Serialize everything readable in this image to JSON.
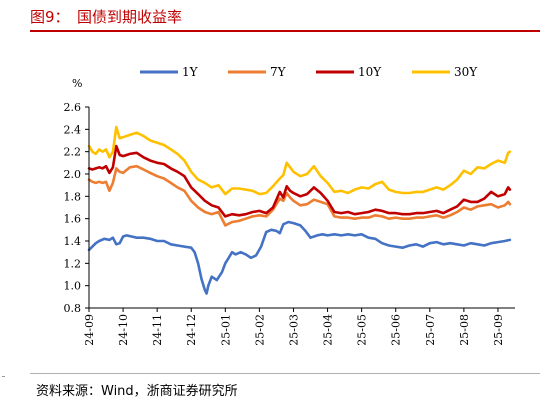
{
  "header": {
    "title": "图9：　国债到期收益率"
  },
  "footer": {
    "source": "资料来源：Wind，浙商证券研究所"
  },
  "chart_data": {
    "type": "line",
    "title": "国债到期收益率",
    "ylabel": "%",
    "ylim": [
      0.8,
      2.6
    ],
    "yticks": [
      "0.8",
      "1.0",
      "1.2",
      "1.4",
      "1.6",
      "1.8",
      "2.0",
      "2.2",
      "2.4",
      "2.6"
    ],
    "xlim": [
      0,
      12.5
    ],
    "xticks": [
      "24-09",
      "24-10",
      "24-11",
      "24-12",
      "25-01",
      "25-02",
      "25-03",
      "25-04",
      "25-05",
      "25-06",
      "25-07",
      "25-08",
      "25-09"
    ],
    "grid": false,
    "legend": "top",
    "colors": {
      "1Y": "#4472c4",
      "7Y": "#ed7d31",
      "10Y": "#c00000",
      "30Y": "#ffc000"
    },
    "series": [
      {
        "name": "1Y",
        "x": [
          0.0,
          0.1,
          0.2,
          0.3,
          0.45,
          0.6,
          0.7,
          0.8,
          0.9,
          1.0,
          1.1,
          1.25,
          1.4,
          1.6,
          1.8,
          2.0,
          2.2,
          2.4,
          2.6,
          2.8,
          3.0,
          3.1,
          3.2,
          3.3,
          3.4,
          3.45,
          3.5,
          3.6,
          3.75,
          3.9,
          4.0,
          4.1,
          4.2,
          4.3,
          4.45,
          4.6,
          4.75,
          4.9,
          5.05,
          5.2,
          5.35,
          5.5,
          5.6,
          5.7,
          5.85,
          6.0,
          6.2,
          6.35,
          6.5,
          6.7,
          6.85,
          7.0,
          7.2,
          7.4,
          7.6,
          7.8,
          8.0,
          8.2,
          8.4,
          8.6,
          8.8,
          9.0,
          9.2,
          9.4,
          9.6,
          9.8,
          10.0,
          10.2,
          10.4,
          10.6,
          10.8,
          11.0,
          11.2,
          11.4,
          11.6,
          11.8,
          12.0,
          12.2,
          12.35
        ],
        "values": [
          1.32,
          1.35,
          1.38,
          1.4,
          1.42,
          1.41,
          1.43,
          1.37,
          1.38,
          1.44,
          1.45,
          1.44,
          1.43,
          1.43,
          1.42,
          1.4,
          1.4,
          1.37,
          1.36,
          1.35,
          1.34,
          1.3,
          1.2,
          1.06,
          0.96,
          0.93,
          1.0,
          1.08,
          1.05,
          1.12,
          1.2,
          1.25,
          1.3,
          1.28,
          1.3,
          1.28,
          1.25,
          1.27,
          1.35,
          1.48,
          1.5,
          1.49,
          1.47,
          1.55,
          1.57,
          1.56,
          1.54,
          1.49,
          1.43,
          1.45,
          1.46,
          1.45,
          1.46,
          1.45,
          1.46,
          1.45,
          1.46,
          1.43,
          1.42,
          1.38,
          1.36,
          1.35,
          1.34,
          1.36,
          1.37,
          1.35,
          1.38,
          1.39,
          1.37,
          1.38,
          1.37,
          1.36,
          1.38,
          1.37,
          1.36,
          1.38,
          1.39,
          1.4,
          1.41
        ]
      },
      {
        "name": "7Y",
        "x": [
          0.0,
          0.1,
          0.2,
          0.3,
          0.4,
          0.5,
          0.6,
          0.7,
          0.8,
          0.9,
          1.0,
          1.2,
          1.4,
          1.6,
          1.8,
          2.0,
          2.2,
          2.4,
          2.6,
          2.8,
          3.0,
          3.2,
          3.4,
          3.6,
          3.8,
          4.0,
          4.2,
          4.4,
          4.6,
          4.8,
          5.0,
          5.2,
          5.4,
          5.6,
          5.7,
          5.8,
          5.9,
          6.0,
          6.2,
          6.4,
          6.6,
          6.8,
          7.0,
          7.2,
          7.4,
          7.6,
          7.8,
          8.0,
          8.2,
          8.4,
          8.6,
          8.8,
          9.0,
          9.2,
          9.4,
          9.6,
          9.8,
          10.0,
          10.2,
          10.4,
          10.6,
          10.8,
          11.0,
          11.2,
          11.4,
          11.6,
          11.8,
          12.0,
          12.2,
          12.3,
          12.35
        ],
        "values": [
          1.95,
          1.93,
          1.92,
          1.93,
          1.92,
          1.93,
          1.85,
          1.92,
          2.05,
          2.02,
          2.01,
          2.06,
          2.07,
          2.04,
          2.01,
          1.98,
          1.96,
          1.92,
          1.88,
          1.85,
          1.76,
          1.7,
          1.66,
          1.64,
          1.66,
          1.54,
          1.57,
          1.58,
          1.6,
          1.62,
          1.63,
          1.62,
          1.68,
          1.78,
          1.76,
          1.83,
          1.79,
          1.76,
          1.72,
          1.73,
          1.77,
          1.75,
          1.73,
          1.62,
          1.61,
          1.61,
          1.6,
          1.61,
          1.61,
          1.63,
          1.62,
          1.6,
          1.61,
          1.6,
          1.6,
          1.61,
          1.61,
          1.62,
          1.63,
          1.61,
          1.63,
          1.66,
          1.7,
          1.68,
          1.71,
          1.72,
          1.73,
          1.7,
          1.72,
          1.75,
          1.73
        ]
      },
      {
        "name": "10Y",
        "x": [
          0.0,
          0.1,
          0.2,
          0.3,
          0.4,
          0.5,
          0.6,
          0.7,
          0.8,
          0.9,
          1.0,
          1.2,
          1.4,
          1.6,
          1.8,
          2.0,
          2.2,
          2.4,
          2.6,
          2.8,
          3.0,
          3.2,
          3.4,
          3.6,
          3.8,
          4.0,
          4.2,
          4.4,
          4.6,
          4.8,
          5.0,
          5.2,
          5.4,
          5.6,
          5.7,
          5.8,
          5.9,
          6.0,
          6.2,
          6.4,
          6.6,
          6.8,
          7.0,
          7.2,
          7.4,
          7.6,
          7.8,
          8.0,
          8.2,
          8.4,
          8.6,
          8.8,
          9.0,
          9.2,
          9.4,
          9.6,
          9.8,
          10.0,
          10.2,
          10.4,
          10.6,
          10.8,
          11.0,
          11.2,
          11.4,
          11.6,
          11.8,
          12.0,
          12.2,
          12.3,
          12.35
        ],
        "values": [
          2.05,
          2.04,
          2.05,
          2.06,
          2.05,
          2.07,
          2.01,
          2.06,
          2.25,
          2.17,
          2.16,
          2.18,
          2.19,
          2.15,
          2.12,
          2.1,
          2.09,
          2.05,
          2.02,
          1.98,
          1.88,
          1.82,
          1.76,
          1.72,
          1.7,
          1.62,
          1.64,
          1.63,
          1.64,
          1.66,
          1.67,
          1.65,
          1.7,
          1.84,
          1.79,
          1.89,
          1.85,
          1.83,
          1.8,
          1.82,
          1.88,
          1.83,
          1.76,
          1.66,
          1.65,
          1.66,
          1.64,
          1.65,
          1.66,
          1.68,
          1.67,
          1.65,
          1.65,
          1.64,
          1.64,
          1.65,
          1.65,
          1.66,
          1.67,
          1.65,
          1.68,
          1.71,
          1.77,
          1.75,
          1.75,
          1.78,
          1.84,
          1.8,
          1.82,
          1.88,
          1.86
        ]
      },
      {
        "name": "30Y",
        "x": [
          0.0,
          0.1,
          0.2,
          0.3,
          0.4,
          0.5,
          0.6,
          0.7,
          0.8,
          0.9,
          1.0,
          1.2,
          1.4,
          1.6,
          1.8,
          2.0,
          2.2,
          2.4,
          2.6,
          2.8,
          3.0,
          3.2,
          3.4,
          3.6,
          3.8,
          4.0,
          4.2,
          4.4,
          4.6,
          4.8,
          5.0,
          5.2,
          5.4,
          5.6,
          5.7,
          5.8,
          5.9,
          6.0,
          6.2,
          6.4,
          6.6,
          6.8,
          7.0,
          7.2,
          7.4,
          7.6,
          7.8,
          8.0,
          8.2,
          8.4,
          8.6,
          8.8,
          9.0,
          9.2,
          9.4,
          9.6,
          9.8,
          10.0,
          10.2,
          10.4,
          10.6,
          10.8,
          11.0,
          11.2,
          11.4,
          11.6,
          11.8,
          12.0,
          12.2,
          12.3,
          12.35
        ],
        "values": [
          2.25,
          2.2,
          2.18,
          2.22,
          2.2,
          2.22,
          2.15,
          2.2,
          2.42,
          2.32,
          2.33,
          2.35,
          2.37,
          2.34,
          2.3,
          2.28,
          2.26,
          2.22,
          2.18,
          2.12,
          2.02,
          1.95,
          1.92,
          1.88,
          1.9,
          1.82,
          1.87,
          1.87,
          1.86,
          1.85,
          1.82,
          1.83,
          1.89,
          1.96,
          1.99,
          2.1,
          2.06,
          2.02,
          1.98,
          2.0,
          2.07,
          1.98,
          1.92,
          1.84,
          1.85,
          1.83,
          1.86,
          1.88,
          1.87,
          1.91,
          1.93,
          1.86,
          1.84,
          1.83,
          1.83,
          1.84,
          1.84,
          1.86,
          1.88,
          1.86,
          1.9,
          1.95,
          2.03,
          2.0,
          2.06,
          2.05,
          2.09,
          2.12,
          2.1,
          2.19,
          2.2
        ]
      }
    ]
  }
}
